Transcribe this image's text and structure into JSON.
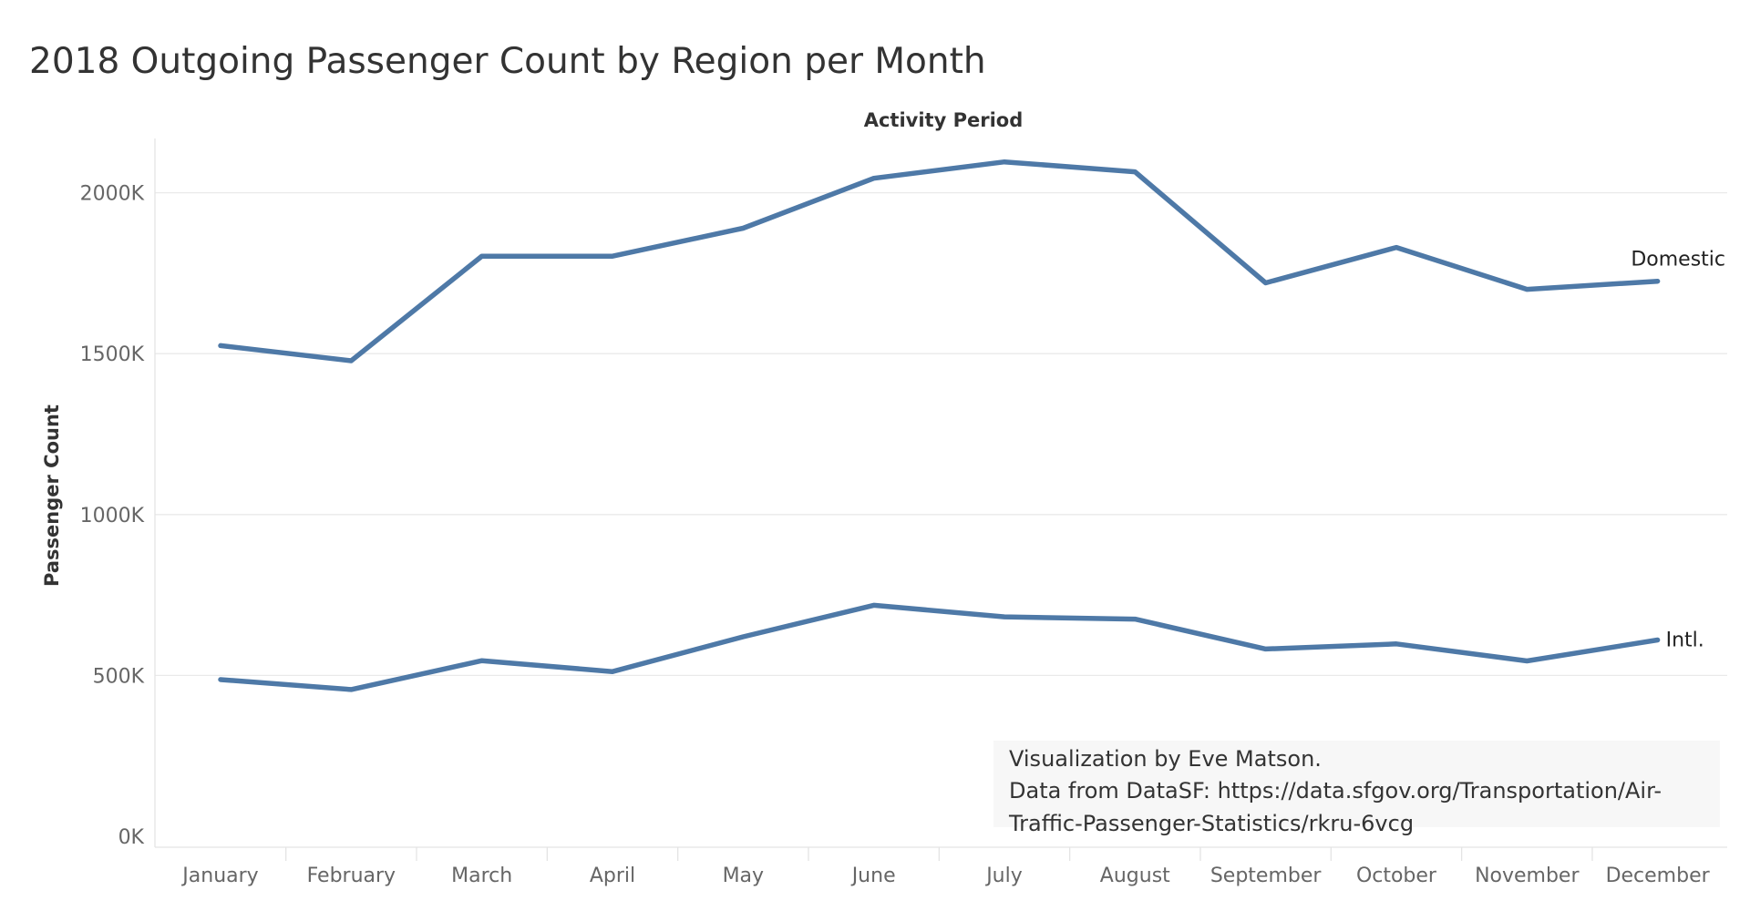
{
  "chart_data": {
    "type": "line",
    "title": "2018 Outgoing Passenger Count by Region per Month",
    "xlabel": "Activity Period",
    "ylabel": "Passenger Count",
    "categories": [
      "January",
      "February",
      "March",
      "April",
      "May",
      "June",
      "July",
      "August",
      "September",
      "October",
      "November",
      "December"
    ],
    "ylim": [
      0,
      2200000
    ],
    "yticks": [
      {
        "value": 0,
        "label": "0K"
      },
      {
        "value": 500000,
        "label": "500K"
      },
      {
        "value": 1000000,
        "label": "1000K"
      },
      {
        "value": 1500000,
        "label": "1500K"
      },
      {
        "value": 2000000,
        "label": "2000K"
      }
    ],
    "grid": true,
    "color": "#4e79a7",
    "series": [
      {
        "name": "Domestic",
        "values": [
          1525000,
          1478000,
          1803000,
          1803000,
          1890000,
          2045000,
          2096000,
          2065000,
          1720000,
          1830000,
          1700000,
          1725000
        ]
      },
      {
        "name": "Intl.",
        "values": [
          487000,
          456000,
          546000,
          512000,
          620000,
          718000,
          682000,
          675000,
          582000,
          598000,
          545000,
          610000
        ]
      }
    ],
    "annotation": [
      "Visualization by Eve Matson.",
      "Data from DataSF: https://data.sfgov.org/Transportation/Air-",
      "Traffic-Passenger-Statistics/rkru-6vcg"
    ]
  }
}
